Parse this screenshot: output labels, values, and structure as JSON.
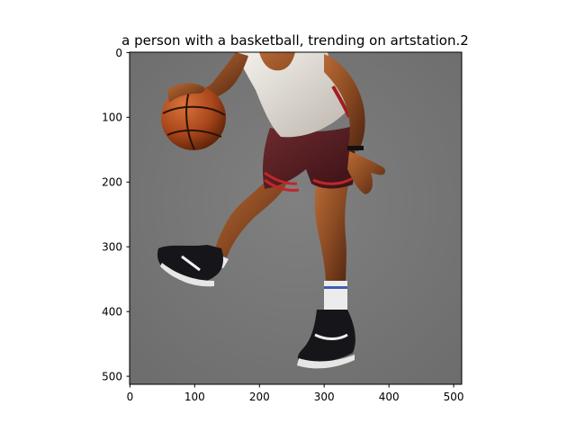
{
  "figure": {
    "title": "a person with a basketball,  trending on artstation.2",
    "image_description": "painted illustration of a basketball player dribbling a ball, wearing a white jersey, maroon shorts with red stripes, white socks and black sneakers, on a gray background",
    "x_axis": {
      "ticks": [
        "0",
        "100",
        "200",
        "300",
        "400",
        "500"
      ],
      "range": [
        0,
        512
      ]
    },
    "y_axis": {
      "ticks": [
        "0",
        "100",
        "200",
        "300",
        "400",
        "500"
      ],
      "range": [
        0,
        512
      ],
      "inverted": true
    },
    "colors": {
      "background": "#7a7a7a",
      "skin": "#8a4a22",
      "jersey": "#e8e4de",
      "shorts": "#5a1f24",
      "stripe": "#c0262b",
      "ball": "#a9471c",
      "shoe": "#16161a"
    }
  }
}
